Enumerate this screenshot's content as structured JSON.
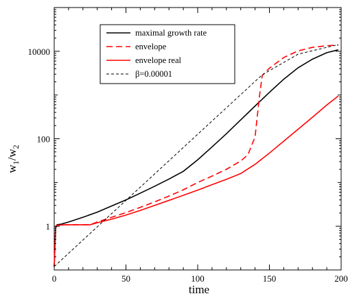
{
  "chart_data": {
    "type": "line",
    "title": "",
    "xlabel": "time",
    "ylabel_main": "w",
    "ylabel_sub1": "1",
    "ylabel_slash": "/w",
    "ylabel_sub2": "2",
    "xlim": [
      0,
      200
    ],
    "ylim": [
      0.1,
      100000
    ],
    "yscale": "log",
    "grid": false,
    "legend_position": "top-center",
    "xticks": [
      {
        "value": 0,
        "label": "0"
      },
      {
        "value": 50,
        "label": "50"
      },
      {
        "value": 100,
        "label": "100"
      },
      {
        "value": 150,
        "label": "150"
      },
      {
        "value": 200,
        "label": "200"
      }
    ],
    "yticks": [
      {
        "value": 1,
        "label": "1"
      },
      {
        "value": 100,
        "label": "100"
      },
      {
        "value": 10000,
        "label": "10000"
      }
    ],
    "series": [
      {
        "name": "maximal growth rate",
        "color": "#000000",
        "dash": "solid",
        "x": [
          0,
          1,
          2,
          5,
          10,
          20,
          30,
          40,
          50,
          60,
          70,
          80,
          90,
          100,
          110,
          120,
          130,
          140,
          150,
          160,
          170,
          180,
          190,
          198
        ],
        "y": [
          0.12,
          0.9,
          1.08,
          1.12,
          1.25,
          1.6,
          2.1,
          2.9,
          4.0,
          5.7,
          8.2,
          12.0,
          18.0,
          33,
          65,
          130,
          270,
          560,
          1150,
          2300,
          4200,
          6600,
          9300,
          10800
        ]
      },
      {
        "name": "envelope",
        "color": "#ff0000",
        "dash": "dashed",
        "x": [
          0,
          1,
          2,
          5,
          10,
          20,
          25,
          30,
          40,
          50,
          60,
          70,
          80,
          90,
          100,
          110,
          120,
          130,
          135,
          140,
          143,
          145,
          150,
          160,
          170,
          180,
          190,
          198
        ],
        "y": [
          0.12,
          1.0,
          1.05,
          1.07,
          1.08,
          1.08,
          1.08,
          1.25,
          1.6,
          2.05,
          2.7,
          3.6,
          4.9,
          6.8,
          10.0,
          14.0,
          20.0,
          31.0,
          43.0,
          110.0,
          900.0,
          2800,
          4100,
          7200,
          10200,
          12300,
          13400,
          13900
        ]
      },
      {
        "name": "envelope real",
        "color": "#ff0000",
        "dash": "solid",
        "x": [
          0,
          1,
          2,
          5,
          10,
          20,
          25,
          30,
          40,
          50,
          60,
          70,
          80,
          90,
          100,
          110,
          120,
          130,
          140,
          150,
          160,
          170,
          180,
          190,
          198
        ],
        "y": [
          0.12,
          1.0,
          1.05,
          1.07,
          1.08,
          1.08,
          1.08,
          1.2,
          1.45,
          1.8,
          2.3,
          3.0,
          3.9,
          5.1,
          6.7,
          8.9,
          11.8,
          16.0,
          26.0,
          47.0,
          88.0,
          165.0,
          310.0,
          590.0,
          950.0
        ]
      },
      {
        "name": "β=0.00001",
        "color": "#000000",
        "dash": "shortdash",
        "x": [
          0,
          145,
          170,
          198
        ],
        "y": [
          0.12,
          2900,
          8600,
          14200
        ]
      }
    ]
  }
}
